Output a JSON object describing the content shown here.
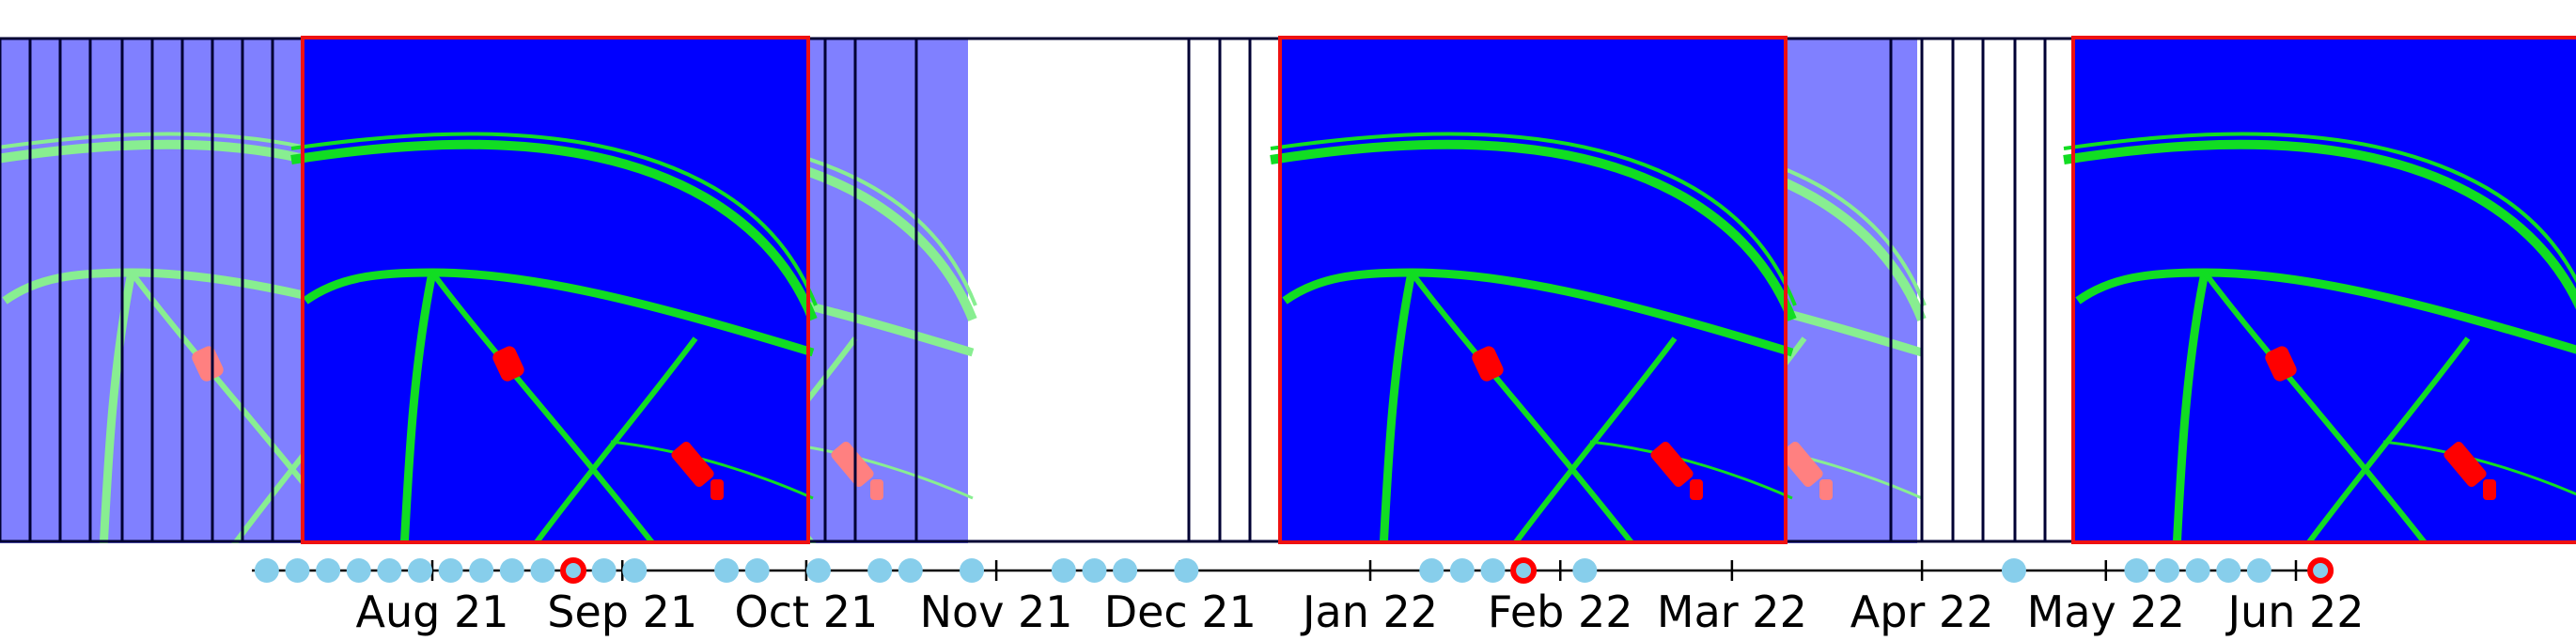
{
  "timeline": {
    "ticks": [
      {
        "label": "Aug 21",
        "date": "2021-08-01"
      },
      {
        "label": "Sep 21",
        "date": "2021-09-01"
      },
      {
        "label": "Oct 21",
        "date": "2021-10-01"
      },
      {
        "label": "Nov 21",
        "date": "2021-11-01"
      },
      {
        "label": "Dec 21",
        "date": "2021-12-01"
      },
      {
        "label": "Jan 22",
        "date": "2022-01-01"
      },
      {
        "label": "Feb 22",
        "date": "2022-02-01"
      },
      {
        "label": "Mar 22",
        "date": "2022-03-01"
      },
      {
        "label": "Apr 22",
        "date": "2022-04-01"
      },
      {
        "label": "May 22",
        "date": "2022-05-01"
      },
      {
        "label": "Jun 22",
        "date": "2022-06-01"
      }
    ],
    "observations": [
      {
        "date": "2021-07-05",
        "selected": false
      },
      {
        "date": "2021-07-10",
        "selected": false
      },
      {
        "date": "2021-07-15",
        "selected": false
      },
      {
        "date": "2021-07-20",
        "selected": false
      },
      {
        "date": "2021-07-25",
        "selected": false
      },
      {
        "date": "2021-07-30",
        "selected": false
      },
      {
        "date": "2021-08-04",
        "selected": false
      },
      {
        "date": "2021-08-09",
        "selected": false
      },
      {
        "date": "2021-08-14",
        "selected": false
      },
      {
        "date": "2021-08-19",
        "selected": false
      },
      {
        "date": "2021-08-24",
        "selected": true
      },
      {
        "date": "2021-08-29",
        "selected": false
      },
      {
        "date": "2021-09-03",
        "selected": false
      },
      {
        "date": "2021-09-18",
        "selected": false
      },
      {
        "date": "2021-09-23",
        "selected": false
      },
      {
        "date": "2021-10-03",
        "selected": false
      },
      {
        "date": "2021-10-13",
        "selected": false
      },
      {
        "date": "2021-10-18",
        "selected": false
      },
      {
        "date": "2021-10-28",
        "selected": false
      },
      {
        "date": "2021-11-12",
        "selected": false
      },
      {
        "date": "2021-11-17",
        "selected": false
      },
      {
        "date": "2021-11-22",
        "selected": false
      },
      {
        "date": "2021-12-02",
        "selected": false
      },
      {
        "date": "2022-01-11",
        "selected": false
      },
      {
        "date": "2022-01-16",
        "selected": false
      },
      {
        "date": "2022-01-21",
        "selected": false
      },
      {
        "date": "2022-01-26",
        "selected": true
      },
      {
        "date": "2022-02-05",
        "selected": false
      },
      {
        "date": "2022-04-16",
        "selected": false
      },
      {
        "date": "2022-05-06",
        "selected": false
      },
      {
        "date": "2022-05-11",
        "selected": false
      },
      {
        "date": "2022-05-16",
        "selected": false
      },
      {
        "date": "2022-05-21",
        "selected": false
      },
      {
        "date": "2022-05-26",
        "selected": false
      },
      {
        "date": "2022-06-05",
        "selected": true
      }
    ]
  },
  "colors": {
    "background_class": "#0000ff",
    "vegetation_class": "#00e000",
    "building_class": "#ff0000",
    "faded_overlay": "#8080ff",
    "observation_marker": "#87ceeb",
    "selected_marker": "#ff0000",
    "frame_border": "#000033",
    "highlight_border": "#ff0000"
  }
}
